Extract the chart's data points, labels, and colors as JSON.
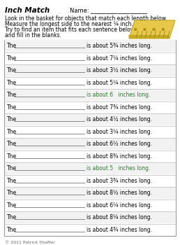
{
  "title": "Inch Match",
  "name_label": "Name:  ___________________",
  "instructions": [
    "Look in the basket for objects that match each length below.",
    "Measure the longest side to the nearest ¼ inch.",
    "Try to find an item that fits each sentence below",
    "and fill in the blanks."
  ],
  "rows": [
    {
      "text": "is about 5¾ inches long.",
      "highlight": false
    },
    {
      "text": "is about 7¼ inches long.",
      "highlight": false
    },
    {
      "text": "is about 3½ inches long.",
      "highlight": false
    },
    {
      "text": "is about 5¼ inches long.",
      "highlight": false
    },
    {
      "text": "is about 6   inches long.",
      "highlight": true
    },
    {
      "text": "is about 7¾ inches long.",
      "highlight": false
    },
    {
      "text": "is about 4½ inches long.",
      "highlight": false
    },
    {
      "text": "is about 3¼ inches long.",
      "highlight": false
    },
    {
      "text": "is about 6½ inches long.",
      "highlight": false
    },
    {
      "text": "is about 8¾ inches long.",
      "highlight": false
    },
    {
      "text": "is about 5   inches long.",
      "highlight": true
    },
    {
      "text": "is about 3¾ inches long.",
      "highlight": false
    },
    {
      "text": "is about 8½ inches long.",
      "highlight": false
    },
    {
      "text": "is about 6¼ inches long.",
      "highlight": false
    },
    {
      "text": "is about 8¼ inches long.",
      "highlight": false
    },
    {
      "text": "is about 4¾ inches long.",
      "highlight": false
    }
  ],
  "copyright": "© 2011 Patrick Shaffer",
  "bg_color": "#ffffff",
  "table_bg": "#ffffff",
  "row_line_color": "#bbbbbb",
  "border_color": "#999999",
  "highlight_color": "#2d7a2d",
  "ruler_color": "#e8c84a",
  "ruler_edge": "#c8a820",
  "title_color": "#000000",
  "text_color": "#000000"
}
